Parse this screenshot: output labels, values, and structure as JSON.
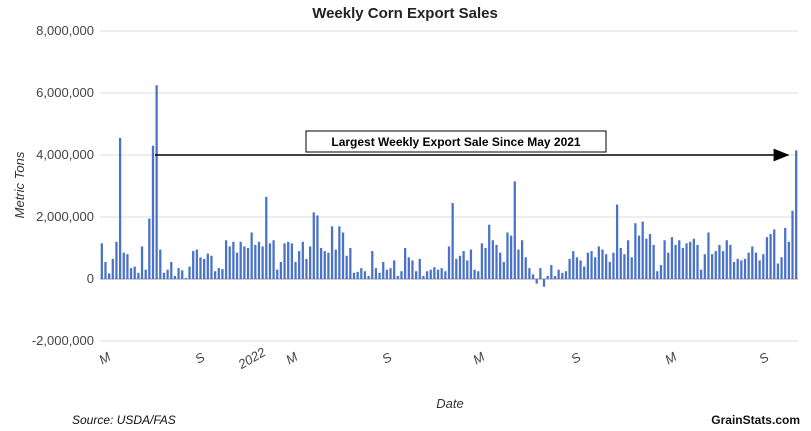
{
  "chart_data": {
    "type": "bar",
    "title": "Weekly Corn Export Sales",
    "xlabel": "Date",
    "ylabel": "Metric Tons",
    "ylim": [
      -2000000,
      6000000
    ],
    "y_ticks": [
      "-2,000,000",
      "0",
      "2,000,000",
      "4,000,000",
      "6,000,000",
      "8,000,000"
    ],
    "x_tick_labels": [
      "M",
      "S",
      "2022",
      "M",
      "S",
      "M",
      "S",
      "M",
      "S"
    ],
    "grid": true,
    "bar_color": "#4a72c8",
    "annotation": "Largest Weekly Export Sale Since May 2021",
    "source": "Source: USDA/FAS",
    "brand": "GrainStats.com",
    "values": [
      1150000,
      550000,
      180000,
      650000,
      1200000,
      4550000,
      850000,
      800000,
      350000,
      400000,
      200000,
      1050000,
      300000,
      1950000,
      4300000,
      6250000,
      950000,
      200000,
      300000,
      550000,
      100000,
      350000,
      280000,
      30000,
      400000,
      900000,
      950000,
      700000,
      650000,
      820000,
      750000,
      250000,
      350000,
      320000,
      1250000,
      1050000,
      1200000,
      850000,
      1200000,
      1050000,
      1000000,
      1500000,
      1100000,
      1200000,
      1050000,
      2650000,
      1150000,
      1250000,
      300000,
      550000,
      1150000,
      1200000,
      1150000,
      550000,
      900000,
      1200000,
      650000,
      1050000,
      2150000,
      2050000,
      1000000,
      900000,
      850000,
      1700000,
      950000,
      1700000,
      1500000,
      750000,
      1000000,
      200000,
      230000,
      350000,
      250000,
      100000,
      900000,
      350000,
      200000,
      550000,
      300000,
      350000,
      600000,
      100000,
      250000,
      1000000,
      700000,
      600000,
      250000,
      650000,
      100000,
      250000,
      300000,
      380000,
      300000,
      350000,
      250000,
      1050000,
      2450000,
      650000,
      750000,
      900000,
      600000,
      950000,
      300000,
      250000,
      1150000,
      1000000,
      1750000,
      1250000,
      1100000,
      850000,
      550000,
      1500000,
      1400000,
      3150000,
      950000,
      1250000,
      700000,
      350000,
      150000,
      -150000,
      350000,
      -250000,
      100000,
      450000,
      100000,
      300000,
      200000,
      250000,
      650000,
      900000,
      700000,
      600000,
      400000,
      850000,
      900000,
      700000,
      1050000,
      950000,
      800000,
      550000,
      850000,
      2400000,
      1000000,
      800000,
      1250000,
      700000,
      1800000,
      1400000,
      1850000,
      1300000,
      1450000,
      1100000,
      250000,
      450000,
      1250000,
      850000,
      1350000,
      1100000,
      1250000,
      1000000,
      1150000,
      1200000,
      1300000,
      1100000,
      300000,
      800000,
      1500000,
      800000,
      900000,
      1100000,
      900000,
      1250000,
      1100000,
      550000,
      650000,
      600000,
      650000,
      850000,
      1050000,
      850000,
      600000,
      800000,
      1350000,
      1450000,
      1600000,
      500000,
      700000,
      1650000,
      1200000,
      2200000,
      4150000
    ]
  }
}
